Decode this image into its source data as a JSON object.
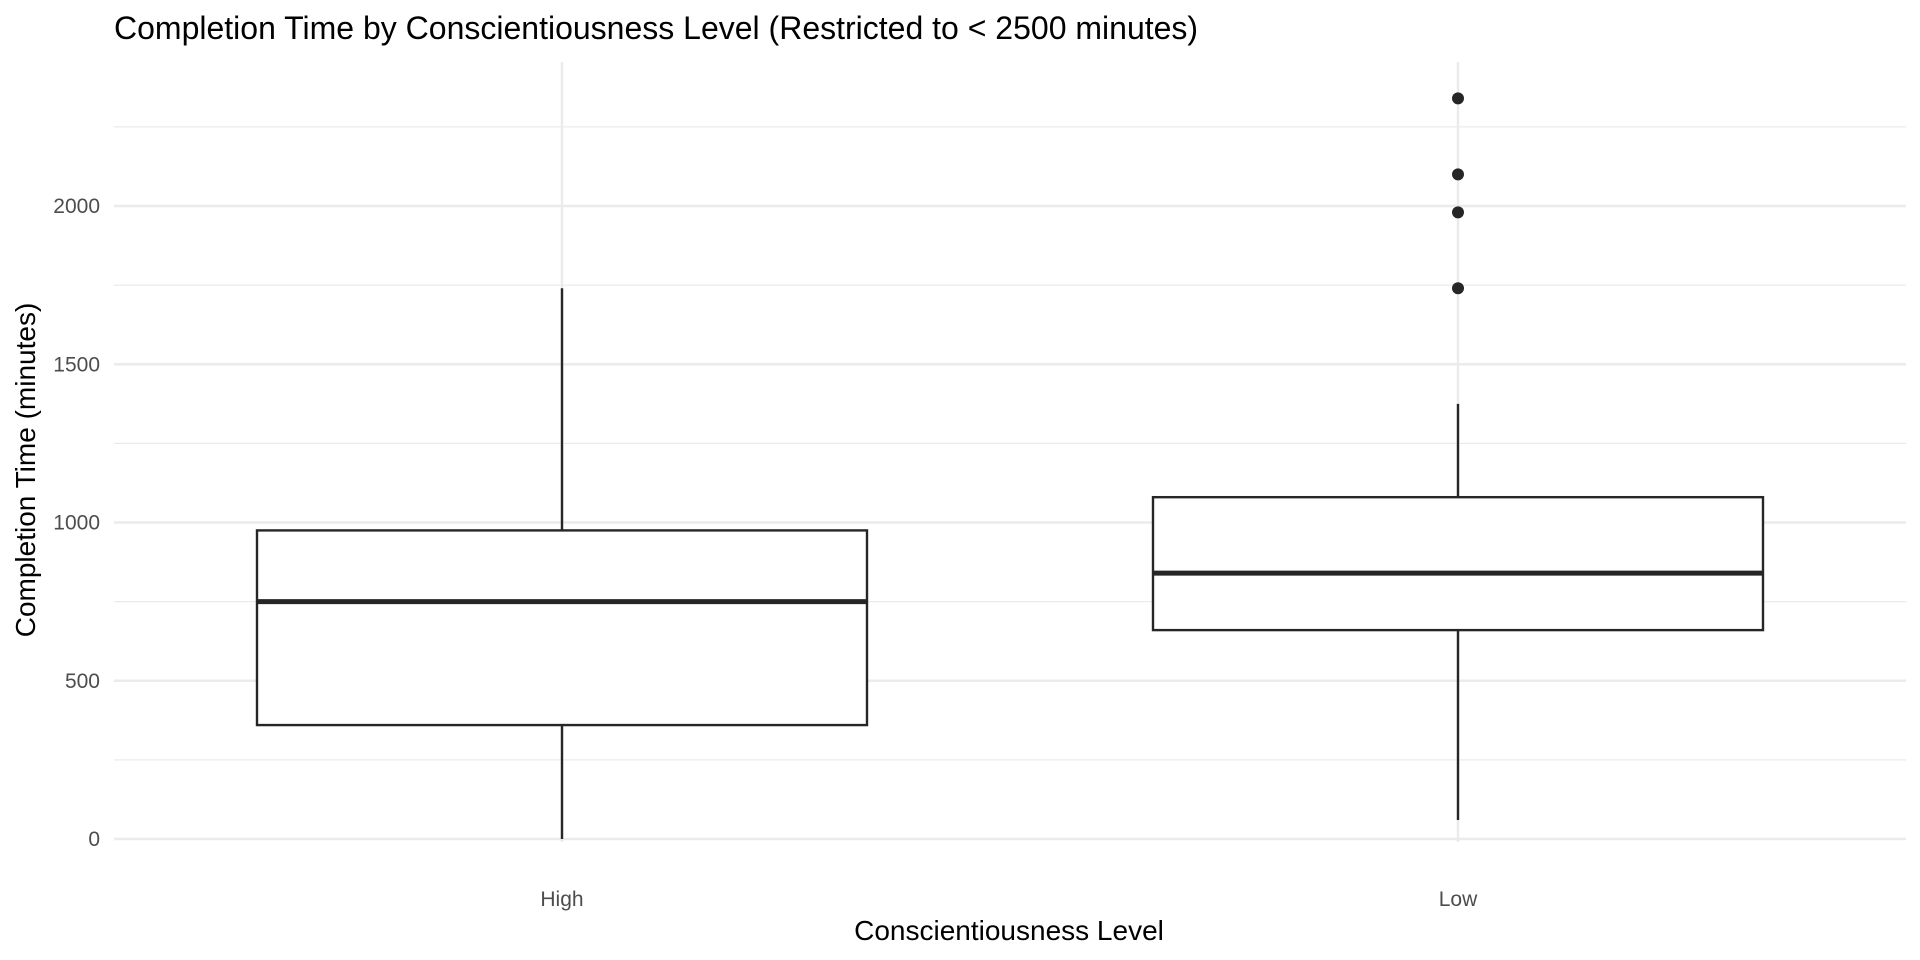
{
  "chart_data": {
    "type": "box",
    "title": "Completion Time by Conscientiousness Level (Restricted to < 2500 minutes)",
    "xlabel": "Conscientiousness Level",
    "ylabel": "Completion Time (minutes)",
    "ylim": [
      0,
      2400
    ],
    "yticks": [
      0,
      500,
      1000,
      1500,
      2000
    ],
    "grid": true,
    "categories": [
      "High",
      "Low"
    ],
    "boxes": [
      {
        "category": "High",
        "whisker_low": 0,
        "q1": 360,
        "median": 750,
        "q3": 975,
        "whisker_high": 1740,
        "outliers": []
      },
      {
        "category": "Low",
        "whisker_low": 60,
        "q1": 660,
        "median": 840,
        "q3": 1080,
        "whisker_high": 1375,
        "outliers": [
          1740,
          1980,
          2100,
          2340
        ]
      }
    ],
    "colors": {
      "box_fill": "#ffffff",
      "box_stroke": "#262626",
      "grid": "#ebebeb",
      "point": "#262626"
    }
  }
}
